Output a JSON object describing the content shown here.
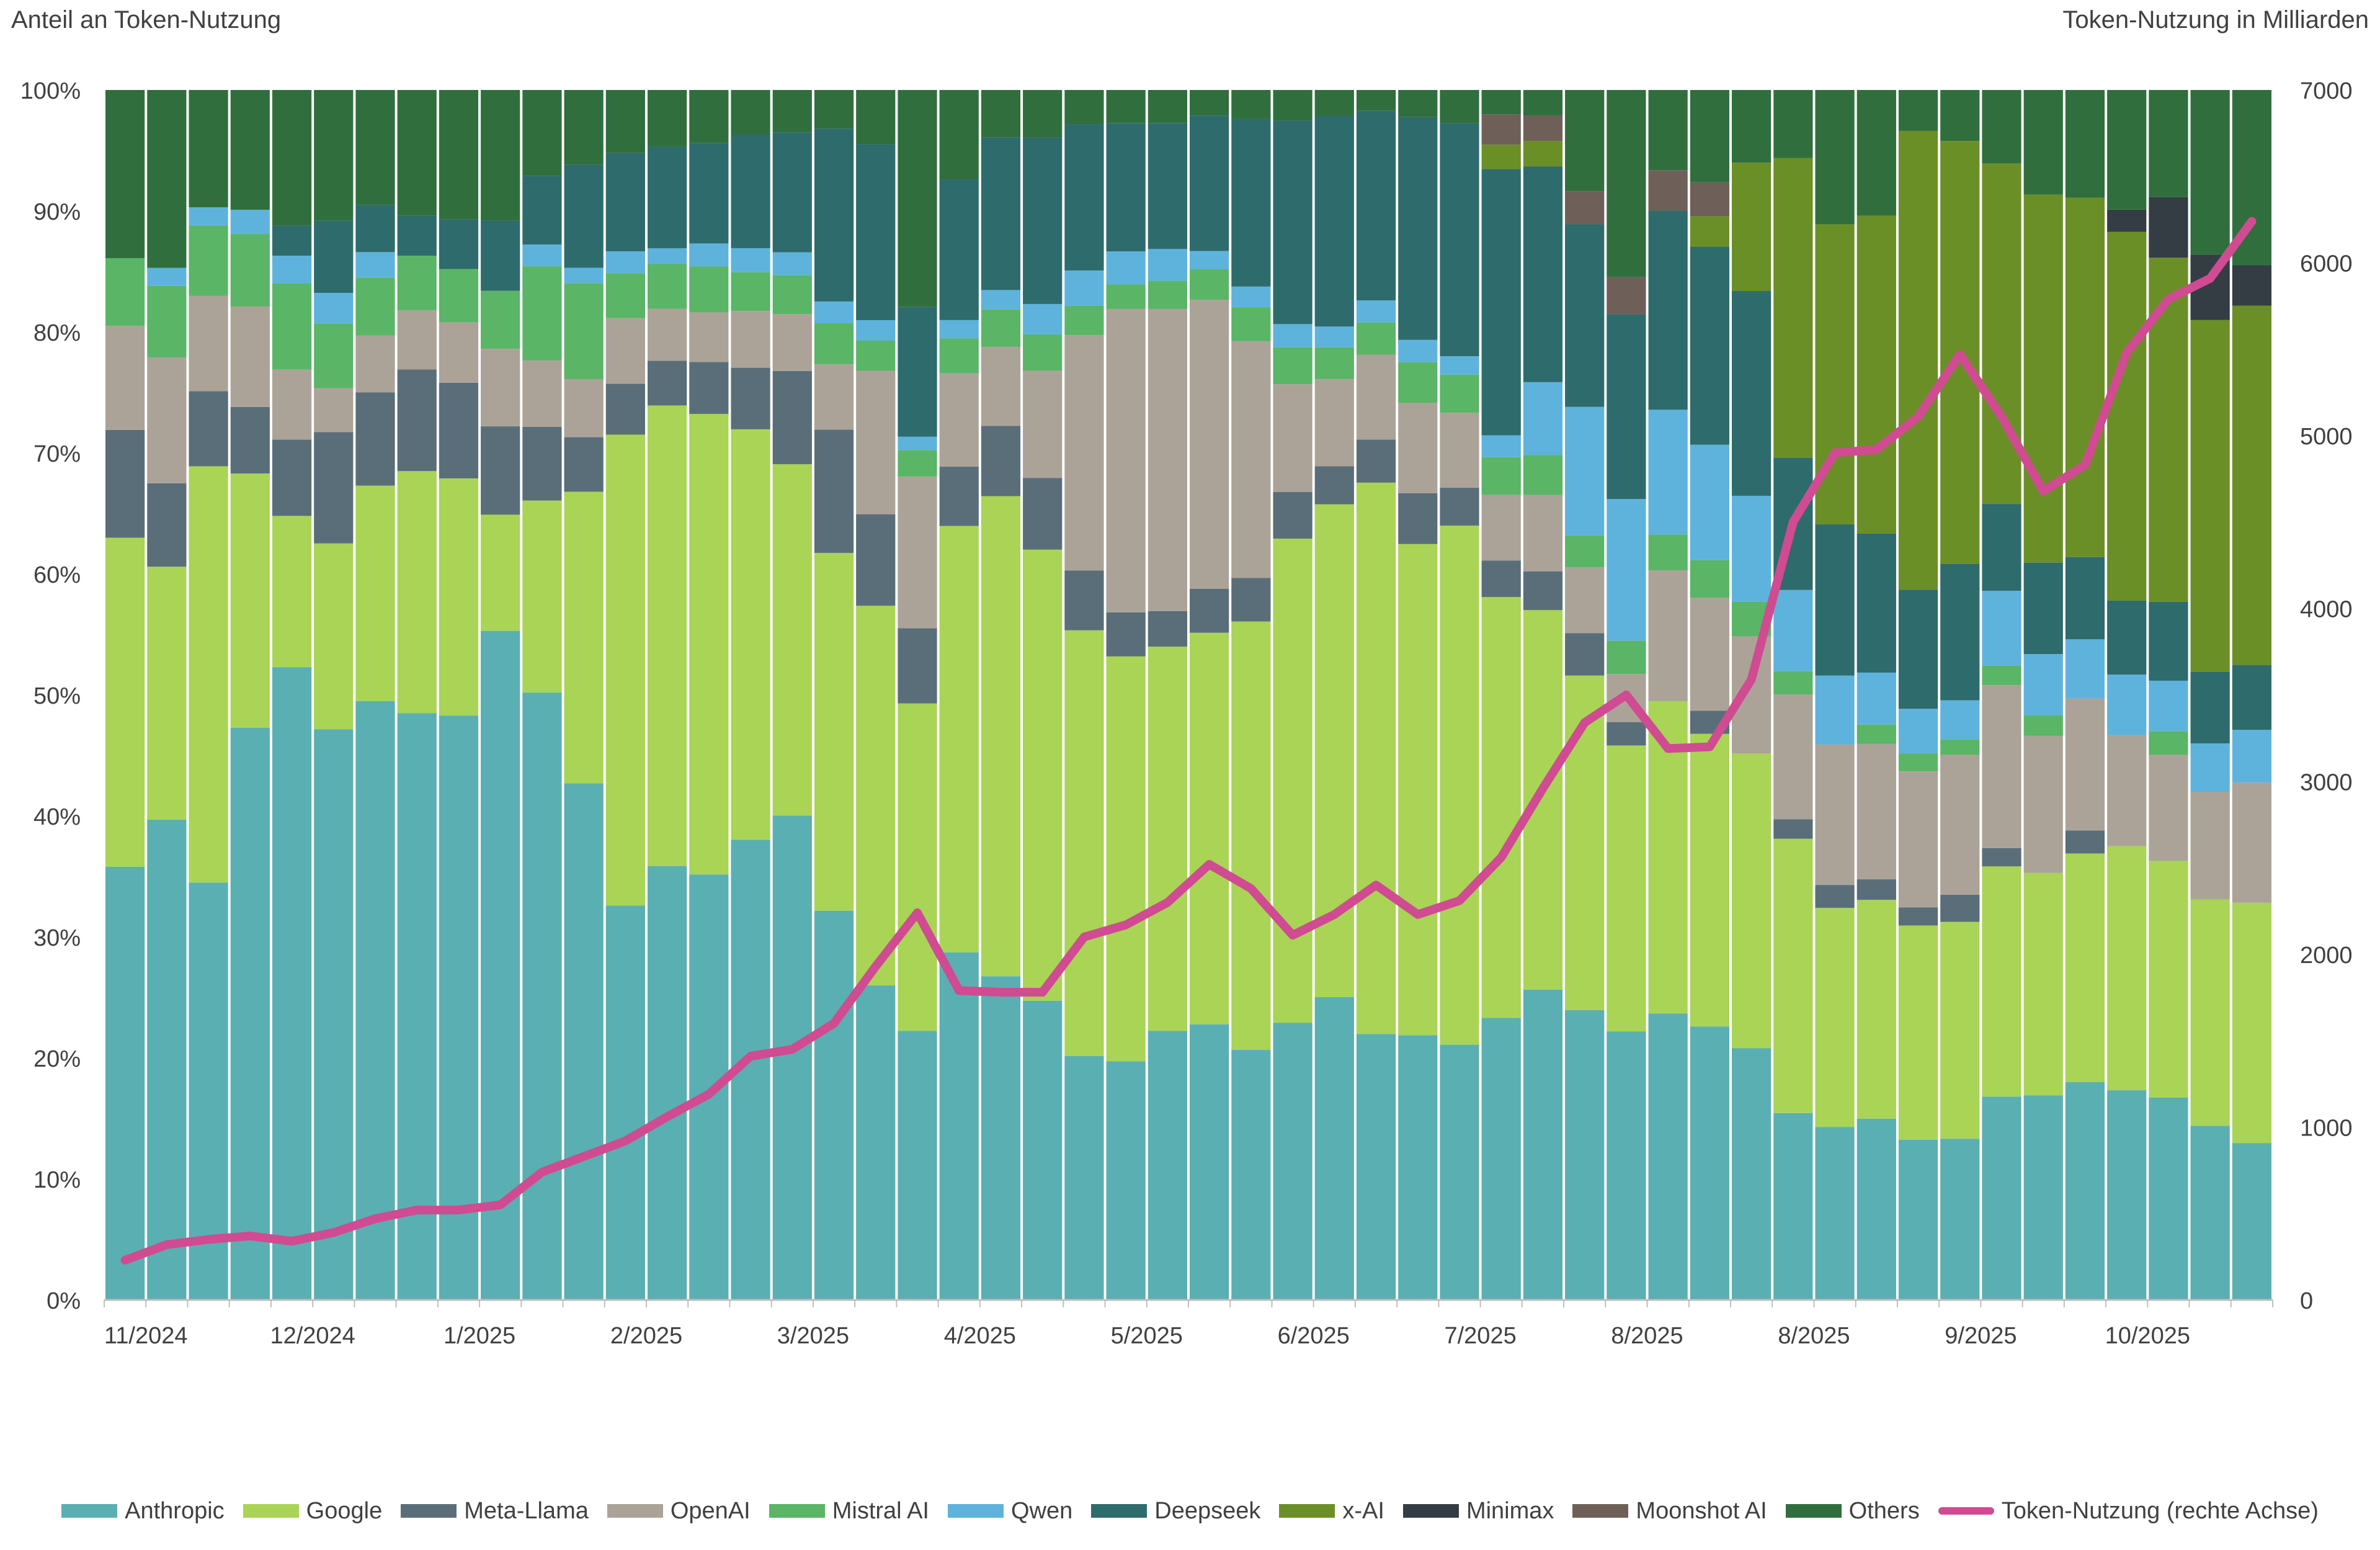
{
  "chart_data": {
    "type": "bar",
    "stacked_percent": true,
    "y_left_label": "Anteil an Token-Nutzung",
    "y_right_label": "Token-Nutzung in Milliarden",
    "y_left_ticks": [
      "0%",
      "10%",
      "20%",
      "30%",
      "40%",
      "50%",
      "60%",
      "70%",
      "80%",
      "90%",
      "100%"
    ],
    "y_right_ticks": [
      "0",
      "1000",
      "2000",
      "3000",
      "4000",
      "5000",
      "6000",
      "7000"
    ],
    "y_left_range": [
      0,
      100
    ],
    "y_right_range": [
      0,
      7000
    ],
    "x_tick_labels": [
      {
        "label": "11/2024",
        "bar": 0
      },
      {
        "label": "12/2024",
        "bar": 4
      },
      {
        "label": "1/2025",
        "bar": 8
      },
      {
        "label": "2/2025",
        "bar": 12
      },
      {
        "label": "3/2025",
        "bar": 16
      },
      {
        "label": "4/2025",
        "bar": 20
      },
      {
        "label": "5/2025",
        "bar": 24
      },
      {
        "label": "6/2025",
        "bar": 28
      },
      {
        "label": "7/2025",
        "bar": 32
      },
      {
        "label": "8/2025",
        "bar": 36
      },
      {
        "label": "8/2025",
        "bar": 40
      },
      {
        "label": "9/2025",
        "bar": 44
      },
      {
        "label": "10/2025",
        "bar": 48
      }
    ],
    "series": [
      {
        "name": "Anthropic",
        "color": "#5aafb3",
        "values": [
          35.8,
          39.7,
          34.5,
          47.3,
          52.3,
          46.7,
          49.5,
          48.5,
          48.3,
          55.3,
          50.3,
          43.6,
          32.5,
          35.9,
          35.2,
          38.1,
          40.0,
          32.2,
          26.1,
          22.2,
          28.7,
          26.7,
          24.6,
          20.0,
          19.5,
          22.0,
          22.6,
          20.6,
          22.6,
          24.7,
          21.6,
          21.4,
          20.8,
          23.2,
          25.6,
          24.6,
          21.8,
          23.2,
          22.5,
          20.4,
          15.4,
          14.3,
          15.0,
          13.3,
          13.6,
          16.6,
          17.0,
          18.0,
          17.0,
          16.4,
          14.4,
          12.8
        ]
      },
      {
        "name": "Google",
        "color": "#a9d456",
        "values": [
          27.2,
          20.9,
          34.4,
          21.0,
          12.5,
          15.2,
          17.8,
          20.0,
          19.6,
          9.6,
          15.9,
          24.6,
          38.8,
          38.1,
          38.1,
          34.0,
          29.0,
          29.6,
          31.5,
          27.0,
          35.2,
          39.6,
          37.1,
          34.9,
          33.1,
          31.4,
          32.1,
          35.3,
          39.5,
          40.2,
          44.8,
          39.7,
          42.3,
          34.6,
          31.3,
          28.4,
          23.2,
          25.3,
          24.1,
          23.9,
          22.6,
          18.1,
          18.1,
          17.8,
          18.3,
          18.8,
          18.5,
          18.9,
          19.8,
          19.2,
          18.7,
          19.6
        ]
      },
      {
        "name": "Meta-Llama",
        "color": "#5a6e79",
        "values": [
          8.9,
          6.9,
          6.2,
          5.5,
          6.3,
          9.1,
          7.7,
          8.4,
          7.9,
          7.3,
          6.1,
          4.6,
          4.2,
          3.7,
          4.3,
          5.1,
          7.7,
          10.2,
          7.6,
          6.2,
          4.9,
          5.8,
          5.9,
          4.9,
          3.6,
          2.9,
          3.6,
          3.6,
          3.8,
          3.1,
          3.5,
          4.1,
          3.1,
          3.0,
          3.2,
          3.6,
          1.9,
          0.0,
          1.9,
          0.0,
          1.6,
          1.9,
          1.7,
          1.5,
          2.3,
          1.5,
          0.0,
          1.9,
          0.0,
          0.0,
          0.0,
          0.0
        ]
      },
      {
        "name": "OpenAI",
        "color": "#aca398",
        "values": [
          8.6,
          10.4,
          7.9,
          8.3,
          5.8,
          3.6,
          4.7,
          4.9,
          5.0,
          6.4,
          5.5,
          4.9,
          5.4,
          4.3,
          4.1,
          4.7,
          4.7,
          5.4,
          11.9,
          12.5,
          7.7,
          6.5,
          8.8,
          19.3,
          24.8,
          24.7,
          23.7,
          19.5,
          8.8,
          7.1,
          6.9,
          7.3,
          6.1,
          5.4,
          6.3,
          5.6,
          3.9,
          10.6,
          9.3,
          9.5,
          10.3,
          11.6,
          11.2,
          11.3,
          11.8,
          13.3,
          11.4,
          10.9,
          9.0,
          8.6,
          8.9,
          9.8
        ]
      },
      {
        "name": "Mistral AI",
        "color": "#5ab567",
        "values": [
          5.6,
          5.9,
          5.8,
          6.0,
          7.1,
          5.3,
          4.8,
          4.5,
          4.4,
          4.8,
          7.8,
          8.1,
          3.7,
          3.7,
          3.8,
          3.2,
          3.2,
          3.4,
          2.5,
          2.2,
          2.9,
          3.1,
          3.0,
          2.4,
          2.0,
          2.3,
          2.5,
          2.8,
          3.0,
          2.6,
          2.6,
          3.3,
          3.1,
          3.1,
          3.3,
          2.7,
          2.7,
          2.9,
          3.1,
          2.8,
          1.9,
          0.0,
          1.6,
          1.5,
          1.3,
          1.6,
          1.7,
          0.0,
          0.0,
          1.9,
          0.0,
          0.0
        ]
      },
      {
        "name": "Qwen",
        "color": "#5eb3dc",
        "values": [
          0.0,
          1.5,
          1.5,
          2.0,
          2.3,
          2.5,
          2.1,
          0.0,
          0.0,
          0.0,
          1.8,
          1.3,
          1.8,
          1.3,
          1.9,
          2.0,
          1.9,
          1.8,
          1.7,
          1.1,
          1.5,
          1.6,
          2.5,
          2.9,
          2.7,
          2.6,
          1.5,
          1.7,
          1.9,
          1.7,
          1.8,
          1.8,
          1.5,
          1.8,
          6.0,
          10.9,
          11.5,
          10.1,
          9.5,
          8.6,
          6.7,
          5.7,
          4.3,
          3.7,
          3.3,
          6.1,
          5.1,
          4.9,
          4.9,
          4.1,
          4.0,
          4.3
        ]
      },
      {
        "name": "Deepseek",
        "color": "#2e6b6c",
        "values": [
          0.0,
          0.0,
          0.0,
          0.0,
          2.5,
          5.9,
          3.9,
          3.3,
          4.1,
          5.8,
          5.7,
          8.7,
          8.1,
          8.4,
          8.3,
          9.4,
          9.9,
          14.3,
          14.6,
          10.7,
          11.6,
          12.6,
          13.7,
          12.0,
          10.5,
          10.3,
          11.1,
          13.8,
          16.6,
          17.2,
          15.4,
          18.0,
          19.0,
          21.9,
          17.8,
          15.5,
          15.0,
          16.1,
          16.3,
          16.6,
          10.9,
          12.5,
          11.5,
          9.9,
          11.5,
          7.1,
          7.6,
          6.8,
          6.0,
          6.4,
          5.9,
          5.3
        ]
      },
      {
        "name": "x-AI",
        "color": "#6b8f27",
        "values": [
          0.0,
          0.0,
          0.0,
          0.0,
          0.0,
          0.0,
          0.0,
          0.0,
          0.0,
          0.0,
          0.0,
          0.0,
          0.0,
          0.0,
          0.0,
          0.0,
          0.0,
          0.0,
          0.0,
          0.0,
          0.0,
          0.0,
          0.0,
          0.0,
          0.0,
          0.0,
          0.0,
          0.0,
          0.0,
          0.0,
          0.0,
          0.0,
          0.0,
          2.0,
          2.1,
          0.0,
          0.0,
          0.0,
          2.5,
          10.4,
          24.7,
          24.8,
          26.3,
          38.1,
          35.7,
          27.8,
          30.6,
          29.7,
          29.9,
          27.9,
          29.1,
          29.3
        ]
      },
      {
        "name": "Minimax",
        "color": "#343c44",
        "values": [
          0.0,
          0.0,
          0.0,
          0.0,
          0.0,
          0.0,
          0.0,
          0.0,
          0.0,
          0.0,
          0.0,
          0.0,
          0.0,
          0.0,
          0.0,
          0.0,
          0.0,
          0.0,
          0.0,
          0.0,
          0.0,
          0.0,
          0.0,
          0.0,
          0.0,
          0.0,
          0.0,
          0.0,
          0.0,
          0.0,
          0.0,
          0.0,
          0.0,
          0.0,
          0.0,
          0.0,
          0.0,
          0.0,
          0.0,
          0.0,
          0.0,
          0.0,
          0.0,
          0.0,
          0.0,
          0.0,
          0.0,
          0.0,
          1.8,
          4.9,
          5.4,
          3.3
        ]
      },
      {
        "name": "Moonshot AI",
        "color": "#6e6058",
        "values": [
          0.0,
          0.0,
          0.0,
          0.0,
          0.0,
          0.0,
          0.0,
          0.0,
          0.0,
          0.0,
          0.0,
          0.0,
          0.0,
          0.0,
          0.0,
          0.0,
          0.0,
          0.0,
          0.0,
          0.0,
          0.0,
          0.0,
          0.0,
          0.0,
          0.0,
          0.0,
          0.0,
          0.0,
          0.0,
          0.0,
          0.0,
          0.0,
          0.0,
          2.5,
          2.1,
          2.8,
          3.0,
          3.3,
          2.8,
          0.0,
          0.0,
          0.0,
          0.0,
          0.0,
          0.0,
          0.0,
          0.0,
          0.0,
          0.0,
          0.0,
          0.0,
          0.0
        ]
      },
      {
        "name": "Others",
        "color": "#306f3d",
        "values": [
          13.9,
          14.7,
          9.7,
          9.9,
          11.2,
          10.7,
          9.5,
          10.4,
          10.7,
          10.8,
          7.1,
          6.3,
          5.2,
          4.7,
          4.4,
          3.7,
          3.5,
          3.2,
          4.5,
          17.9,
          7.4,
          3.9,
          3.9,
          2.8,
          2.7,
          2.7,
          2.1,
          2.4,
          2.5,
          2.1,
          1.7,
          2.2,
          2.7,
          2.0,
          2.1,
          8.6,
          15.2,
          6.5,
          7.6,
          5.9,
          5.6,
          11.1,
          10.4,
          3.4,
          4.3,
          6.0,
          8.7,
          8.9,
          9.7,
          8.7,
          13.6,
          14.3
        ]
      }
    ],
    "line": {
      "name": "Token-Nutzung (rechte Achse)",
      "color": "#d04b91",
      "axis": "right",
      "values": [
        230,
        320,
        350,
        370,
        340,
        390,
        470,
        520,
        520,
        550,
        740,
        830,
        920,
        1060,
        1190,
        1410,
        1450,
        1600,
        1930,
        2240,
        1790,
        1780,
        1780,
        2100,
        2170,
        2300,
        2520,
        2380,
        2110,
        2230,
        2400,
        2230,
        2310,
        2560,
        2960,
        3340,
        3500,
        3190,
        3200,
        3590,
        4500,
        4900,
        4920,
        5110,
        5470,
        5110,
        4680,
        4830,
        5480,
        5790,
        5910,
        6240
      ]
    },
    "grid": "none",
    "legend_position": "bottom"
  }
}
